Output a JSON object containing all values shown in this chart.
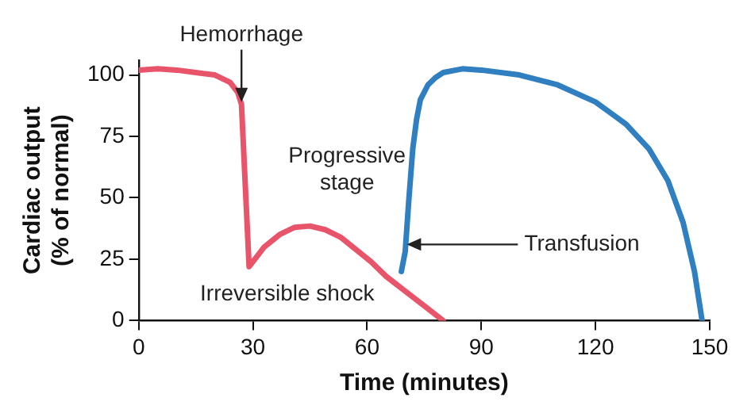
{
  "chart_data": {
    "type": "line",
    "xlabel": "Time (minutes)",
    "ylabel": "Cardiac output (% of normal)",
    "xlim": [
      0,
      150
    ],
    "xticks": [
      0,
      30,
      60,
      90,
      120,
      150
    ],
    "ylim": [
      0,
      106
    ],
    "yticks": [
      0,
      25,
      50,
      75,
      100
    ],
    "grid": false,
    "legend": false,
    "marker": "none",
    "line_style": "solid",
    "series": [
      {
        "color": "#e8546a",
        "x": [
          0,
          5,
          10,
          15,
          20,
          24,
          26,
          27,
          28,
          29,
          30,
          33,
          37,
          41,
          45,
          49,
          53,
          57,
          61,
          65,
          70,
          75,
          80
        ],
        "values": [
          102,
          102.5,
          102,
          101,
          100,
          97,
          93,
          88,
          55,
          22,
          24,
          30,
          35,
          38,
          38.5,
          37,
          34,
          29,
          24,
          18,
          12,
          6,
          0
        ]
      },
      {
        "color": "#2f7fc1",
        "x": [
          69,
          70,
          71,
          72,
          73,
          74,
          76,
          78,
          80,
          85,
          90,
          100,
          110,
          120,
          128,
          134,
          139,
          143,
          146,
          148
        ],
        "values": [
          20,
          28,
          50,
          70,
          82,
          90,
          96,
          99,
          101,
          102.5,
          102,
          100,
          96,
          89,
          80,
          70,
          57,
          40,
          20,
          0
        ]
      }
    ],
    "annotations": [
      {
        "text": "Hemorrhage",
        "x": 27,
        "y": 89
      },
      "Progressive stage",
      {
        "text": "Transfusion",
        "x": 70,
        "y": 31
      },
      "Irreversible shock"
    ]
  }
}
